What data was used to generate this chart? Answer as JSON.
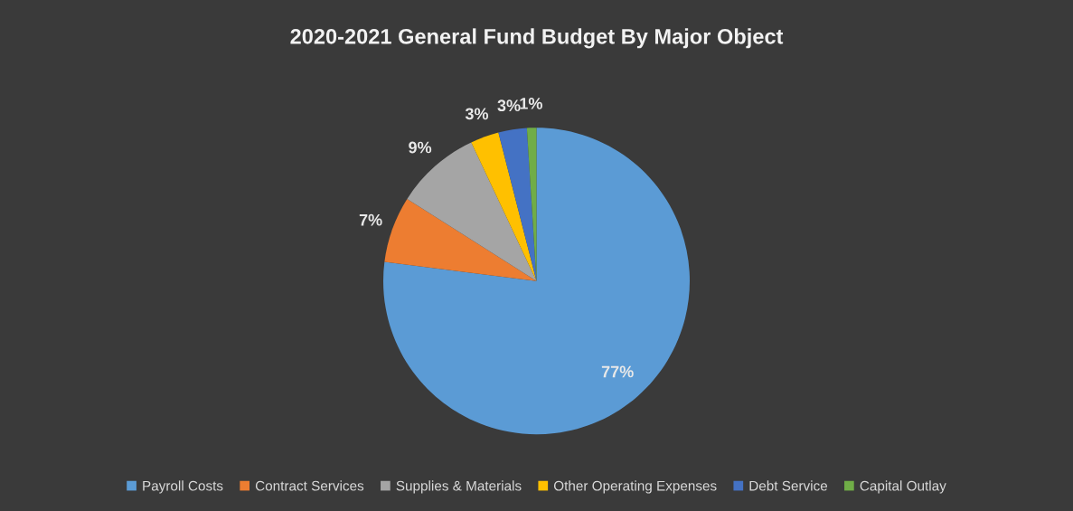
{
  "chart_data": {
    "type": "pie",
    "title": "2020-2021 General Fund Budget By Major Object",
    "categories": [
      "Payroll Costs",
      "Contract Services",
      "Supplies & Materials",
      "Other Operating Expenses",
      "Debt Service",
      "Capital Outlay"
    ],
    "values": [
      77,
      7,
      9,
      3,
      3,
      1
    ],
    "value_labels": [
      "77%",
      "7%",
      "9%",
      "3%",
      "3%",
      "1%"
    ],
    "colors": [
      "#5b9bd5",
      "#ed7d31",
      "#a5a5a5",
      "#ffc000",
      "#4472c4",
      "#70ad47"
    ],
    "legend": "bottom"
  }
}
